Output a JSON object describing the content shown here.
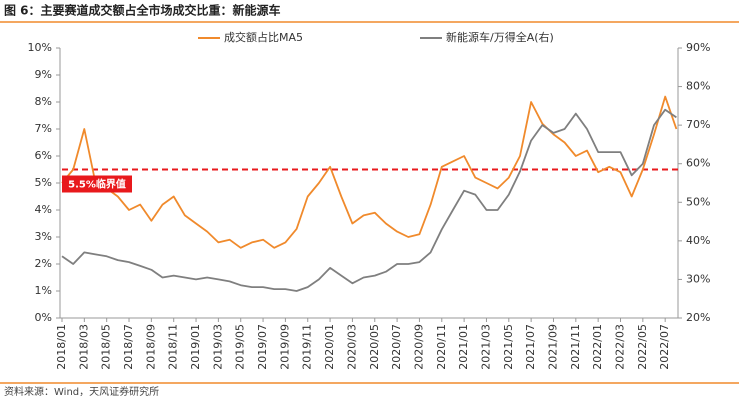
{
  "chart_data": {
    "type": "line",
    "title": "图 6：主要赛道成交额占全市场成交比重：新能源车",
    "source": "资料来源：Wind，天风证券研究所",
    "categories": [
      "2018/01",
      null,
      "2018/03",
      null,
      "2018/05",
      null,
      "2018/07",
      null,
      "2018/09",
      null,
      "2018/11",
      null,
      "2019/01",
      null,
      "2019/03",
      null,
      "2019/05",
      null,
      "2019/07",
      null,
      "2019/09",
      null,
      "2019/11",
      null,
      "2020/01",
      null,
      "2020/03",
      null,
      "2020/05",
      null,
      "2020/07",
      null,
      "2020/09",
      null,
      "2020/11",
      null,
      "2021/01",
      null,
      "2021/03",
      null,
      "2021/05",
      null,
      "2021/07",
      null,
      "2021/09",
      null,
      "2021/11",
      null,
      "2022/01",
      null,
      "2022/03",
      null,
      "2022/05",
      null,
      "2022/07",
      null
    ],
    "series": [
      {
        "name": "成交额占比MA5",
        "color": "#f08a2c",
        "axis": "y",
        "values": [
          5.0,
          5.5,
          7.0,
          5.0,
          4.8,
          4.5,
          4.0,
          4.2,
          3.6,
          4.2,
          4.5,
          3.8,
          3.5,
          3.2,
          2.8,
          2.9,
          2.6,
          2.8,
          2.9,
          2.6,
          2.8,
          3.3,
          4.5,
          5.0,
          5.6,
          4.5,
          3.5,
          3.8,
          3.9,
          3.5,
          3.2,
          3.0,
          3.1,
          4.2,
          5.6,
          5.8,
          6.0,
          5.2,
          5.0,
          4.8,
          5.2,
          6.0,
          8.0,
          7.2,
          6.8,
          6.5,
          6.0,
          6.2,
          5.4,
          5.6,
          5.4,
          4.5,
          5.5,
          6.8,
          8.2,
          7.0
        ]
      },
      {
        "name": "新能源车/万得全A(右)",
        "color": "#7f7f7f",
        "axis": "y2",
        "values": [
          36,
          34,
          37,
          36.5,
          36,
          35,
          34.5,
          33.5,
          32.5,
          30.5,
          31,
          30.5,
          30,
          30.5,
          30,
          29.5,
          28.5,
          28,
          28,
          27.5,
          27.5,
          27,
          28,
          30,
          33,
          31,
          29,
          30.5,
          31,
          32,
          34,
          34,
          34.5,
          37,
          43,
          48,
          53,
          52,
          48,
          48,
          52,
          58,
          66,
          70,
          68,
          69,
          73,
          69,
          63,
          63,
          63,
          57,
          60,
          70,
          74,
          72
        ]
      }
    ],
    "ylim": [
      0,
      10
    ],
    "yticks": [
      {
        "value": 0,
        "label": "0%"
      },
      {
        "value": 1,
        "label": "1%"
      },
      {
        "value": 2,
        "label": "2%"
      },
      {
        "value": 3,
        "label": "3%"
      },
      {
        "value": 4,
        "label": "4%"
      },
      {
        "value": 5,
        "label": "5%"
      },
      {
        "value": 6,
        "label": "6%"
      },
      {
        "value": 7,
        "label": "7%"
      },
      {
        "value": 8,
        "label": "8%"
      },
      {
        "value": 9,
        "label": "9%"
      },
      {
        "value": 10,
        "label": "10%"
      }
    ],
    "y2lim": [
      20,
      90
    ],
    "y2ticks": [
      {
        "value": 20,
        "label": "20%"
      },
      {
        "value": 30,
        "label": "30%"
      },
      {
        "value": 40,
        "label": "40%"
      },
      {
        "value": 50,
        "label": "50%"
      },
      {
        "value": 60,
        "label": "60%"
      },
      {
        "value": 70,
        "label": "70%"
      },
      {
        "value": 80,
        "label": "80%"
      },
      {
        "value": 90,
        "label": "90%"
      }
    ],
    "reference_line": {
      "value": 5.5,
      "label": "5.5%临界值",
      "color": "#e8191c"
    },
    "legend": "top"
  }
}
